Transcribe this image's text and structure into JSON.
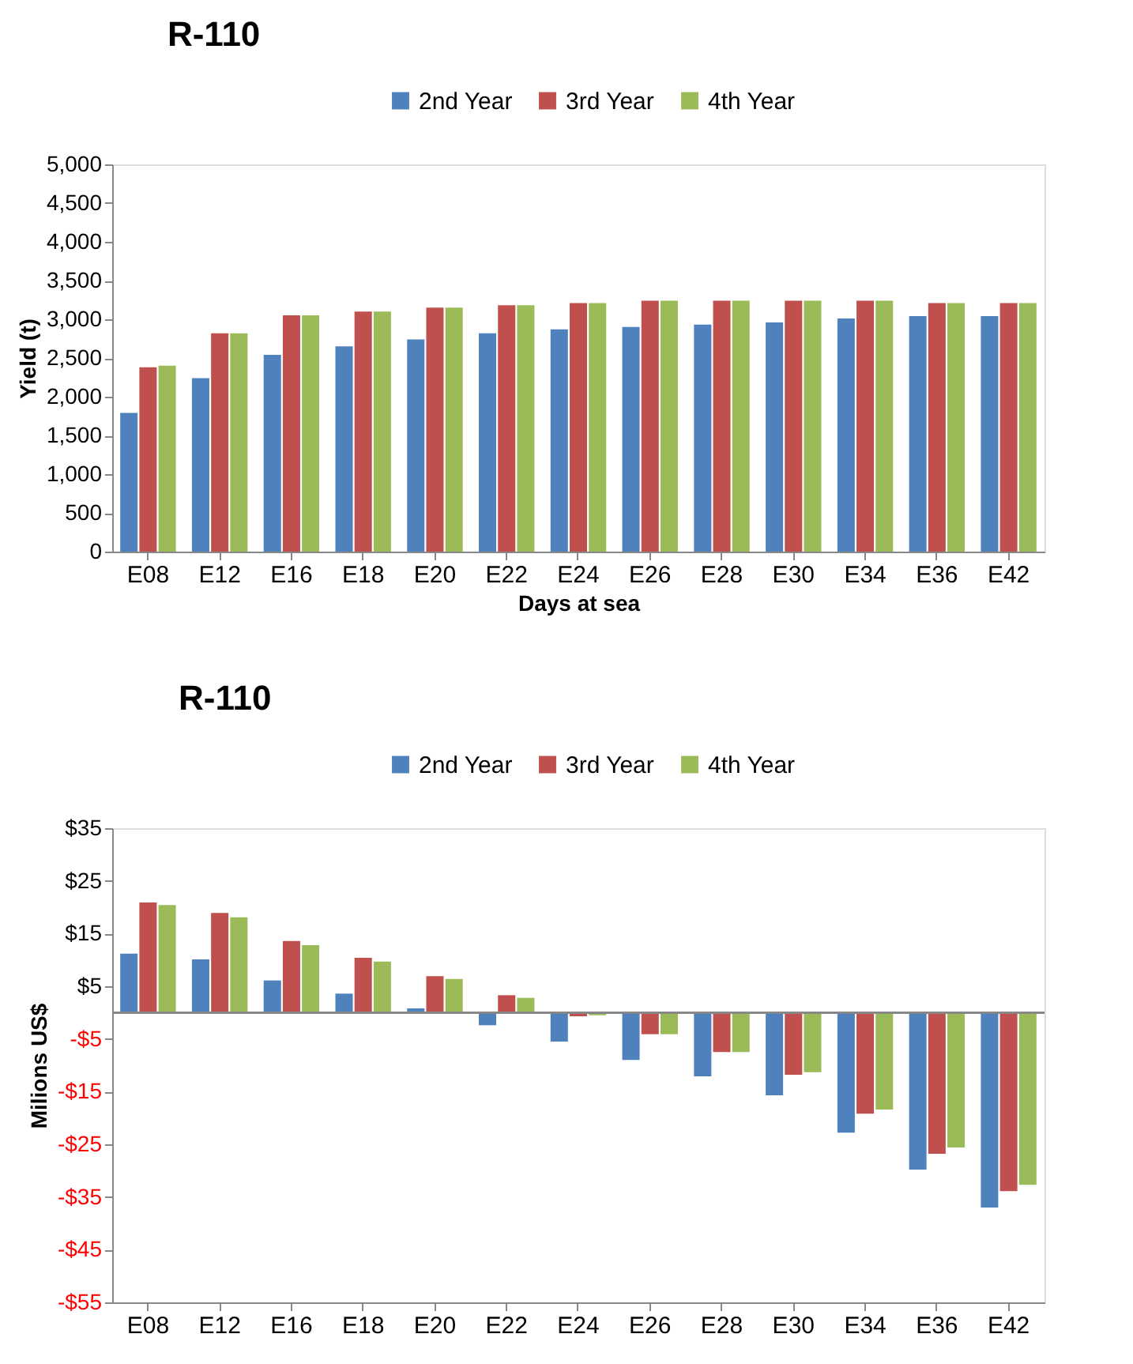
{
  "chart_data": [
    {
      "type": "bar",
      "title": "R-110",
      "xlabel": "Days at sea",
      "ylabel": "Yield (t)",
      "categories": [
        "E08",
        "E12",
        "E16",
        "E18",
        "E20",
        "E22",
        "E24",
        "E26",
        "E28",
        "E30",
        "E34",
        "E36",
        "E42"
      ],
      "series": [
        {
          "name": "2nd Year",
          "color": "#4f81bd",
          "values": [
            1790,
            2240,
            2540,
            2650,
            2740,
            2820,
            2870,
            2900,
            2930,
            2960,
            3010,
            3040,
            3040
          ]
        },
        {
          "name": "3rd Year",
          "color": "#c0504d",
          "values": [
            2380,
            2820,
            3050,
            3100,
            3150,
            3180,
            3210,
            3240,
            3240,
            3240,
            3240,
            3210,
            3210
          ]
        },
        {
          "name": "4th Year",
          "color": "#9bbb59",
          "values": [
            2400,
            2820,
            3050,
            3100,
            3150,
            3180,
            3210,
            3240,
            3240,
            3240,
            3240,
            3210,
            3210
          ]
        }
      ],
      "ylim": [
        0,
        5000
      ],
      "yticks": [
        0,
        {
          "value": 500,
          "label": "500"
        },
        {
          "value": 1000,
          "label": "1,000"
        },
        {
          "value": 1500,
          "label": "1,500"
        },
        {
          "value": 2000,
          "label": "2,000"
        },
        {
          "value": 2500,
          "label": "2,500"
        },
        {
          "value": 3000,
          "label": "3,000"
        },
        {
          "value": 3500,
          "label": "3,500"
        },
        {
          "value": 4000,
          "label": "4,000"
        },
        {
          "value": 4500,
          "label": "4,500"
        },
        {
          "value": 5000,
          "label": "5,000"
        }
      ],
      "grid": false,
      "legend": "top"
    },
    {
      "type": "bar",
      "title": "R-110",
      "ylabel": "Milions US$",
      "categories": [
        "E08",
        "E12",
        "E16",
        "E18",
        "E20",
        "E22",
        "E24",
        "E26",
        "E28",
        "E30",
        "E34",
        "E36",
        "E42"
      ],
      "series": [
        {
          "name": "2nd Year",
          "color": "#4f81bd",
          "values": [
            11.2,
            10.1,
            6.1,
            3.6,
            0.8,
            -2.4,
            -5.5,
            -9.0,
            -12.1,
            -15.7,
            -22.8,
            -29.8,
            -37.0
          ]
        },
        {
          "name": "3rd Year",
          "color": "#c0504d",
          "values": [
            20.9,
            18.9,
            13.6,
            10.4,
            6.9,
            3.3,
            -0.7,
            -4.1,
            -7.5,
            -11.8,
            -19.2,
            -26.8,
            -33.9
          ]
        },
        {
          "name": "4th Year",
          "color": "#9bbb59",
          "values": [
            20.4,
            18.1,
            12.8,
            9.7,
            6.4,
            2.8,
            -0.5,
            -4.1,
            -7.5,
            -11.3,
            -18.4,
            -25.6,
            -32.7
          ]
        }
      ],
      "ylim": [
        -55,
        35
      ],
      "yticks": [
        {
          "value": 35,
          "label": "$35"
        },
        {
          "value": 25,
          "label": "$25"
        },
        {
          "value": 15,
          "label": "$15"
        },
        {
          "value": 5,
          "label": "$5"
        },
        {
          "value": -5,
          "label": "-$5"
        },
        {
          "value": -15,
          "label": "-$15"
        },
        {
          "value": -25,
          "label": "-$25"
        },
        {
          "value": -35,
          "label": "-$35"
        },
        {
          "value": -45,
          "label": "-$45"
        },
        {
          "value": -55,
          "label": "-$55"
        }
      ],
      "grid": false,
      "legend": "top"
    }
  ]
}
